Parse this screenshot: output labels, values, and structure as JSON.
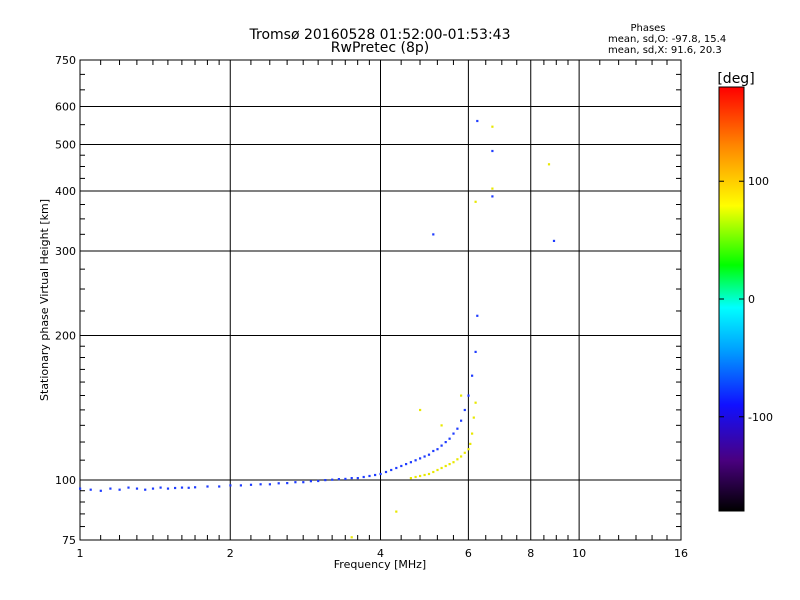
{
  "chart_data": {
    "type": "scatter",
    "title": "Tromsø 20160528 01:52:00-01:53:43",
    "subtitle": "RwPretec (8p)",
    "phases_box": {
      "title": "Phases",
      "line_o": "mean, sd,O: -97.8, 15.4",
      "line_x": "mean, sd,X:  91.6, 20.3"
    },
    "xlabel": "Frequency [MHz]",
    "ylabel": "Stationary phase Virtual Height [km]",
    "x_scale": "log",
    "y_scale": "log",
    "xlim": [
      1,
      16
    ],
    "ylim": [
      75,
      750
    ],
    "x_ticks": [
      1,
      2,
      4,
      6,
      8,
      10,
      16
    ],
    "x_tick_labels": [
      "1",
      "2",
      "4",
      "6",
      "8",
      "10",
      "16"
    ],
    "y_ticks": [
      75,
      100,
      200,
      300,
      400,
      500,
      600,
      750
    ],
    "y_tick_labels": [
      "75",
      "100",
      "200",
      "300",
      "400",
      "500",
      "600",
      "750"
    ],
    "grid": true,
    "colorbar": {
      "label": "[deg]",
      "range": [
        -180,
        180
      ],
      "ticks": [
        100,
        0,
        -100
      ],
      "tick_labels": [
        "100",
        "0",
        "-100"
      ]
    },
    "o_trace": {
      "phase": -100,
      "points": [
        [
          1.0,
          96
        ],
        [
          1.05,
          95.5
        ],
        [
          1.1,
          95
        ],
        [
          1.15,
          96
        ],
        [
          1.2,
          95.5
        ],
        [
          1.25,
          96.5
        ],
        [
          1.3,
          96
        ],
        [
          1.35,
          95.5
        ],
        [
          1.4,
          96
        ],
        [
          1.45,
          96.5
        ],
        [
          1.5,
          96
        ],
        [
          1.55,
          96.3
        ],
        [
          1.6,
          96.5
        ],
        [
          1.65,
          96.4
        ],
        [
          1.7,
          96.6
        ],
        [
          1.8,
          97
        ],
        [
          1.9,
          97
        ],
        [
          2.0,
          97.5
        ],
        [
          2.1,
          97.5
        ],
        [
          2.2,
          97.8
        ],
        [
          2.3,
          98
        ],
        [
          2.4,
          98
        ],
        [
          2.5,
          98.5
        ],
        [
          2.6,
          98.6
        ],
        [
          2.7,
          99
        ],
        [
          2.8,
          99
        ],
        [
          2.9,
          99.5
        ],
        [
          3.0,
          99.6
        ],
        [
          3.1,
          100
        ],
        [
          3.2,
          100.2
        ],
        [
          3.3,
          100.5
        ],
        [
          3.4,
          100.6
        ],
        [
          3.5,
          101
        ],
        [
          3.6,
          101
        ],
        [
          3.7,
          101.5
        ],
        [
          3.8,
          102
        ],
        [
          3.9,
          102.5
        ],
        [
          4.0,
          103
        ],
        [
          4.1,
          104
        ],
        [
          4.2,
          105
        ],
        [
          4.3,
          106
        ],
        [
          4.4,
          107
        ],
        [
          4.5,
          108
        ],
        [
          4.6,
          109
        ],
        [
          4.7,
          110
        ],
        [
          4.8,
          111
        ],
        [
          4.9,
          112
        ],
        [
          5.0,
          113
        ],
        [
          5.1,
          115
        ],
        [
          5.2,
          116
        ],
        [
          5.3,
          118
        ],
        [
          5.4,
          120
        ],
        [
          5.5,
          122
        ],
        [
          5.6,
          125
        ],
        [
          5.7,
          128
        ],
        [
          5.8,
          133
        ],
        [
          5.9,
          140
        ],
        [
          6.0,
          150
        ],
        [
          6.1,
          165
        ],
        [
          6.2,
          185
        ],
        [
          6.25,
          220
        ],
        [
          6.25,
          560
        ],
        [
          6.7,
          485
        ],
        [
          6.7,
          390
        ],
        [
          8.9,
          315
        ],
        [
          5.1,
          325
        ]
      ]
    },
    "x_trace": {
      "phase": 100,
      "points": [
        [
          4.6,
          101
        ],
        [
          4.7,
          101.5
        ],
        [
          4.8,
          102
        ],
        [
          4.9,
          102.5
        ],
        [
          5.0,
          103
        ],
        [
          5.1,
          104
        ],
        [
          5.2,
          105
        ],
        [
          5.3,
          106
        ],
        [
          5.4,
          107
        ],
        [
          5.5,
          108
        ],
        [
          5.6,
          109
        ],
        [
          5.7,
          110.5
        ],
        [
          5.8,
          112
        ],
        [
          5.9,
          114
        ],
        [
          6.0,
          116
        ],
        [
          6.05,
          119
        ],
        [
          6.1,
          125
        ],
        [
          6.15,
          135
        ],
        [
          6.2,
          145
        ],
        [
          5.8,
          150
        ],
        [
          5.3,
          130
        ],
        [
          4.8,
          140
        ],
        [
          6.7,
          545
        ],
        [
          6.7,
          405
        ],
        [
          6.2,
          380
        ],
        [
          8.7,
          455
        ],
        [
          4.3,
          86
        ],
        [
          3.5,
          76
        ]
      ]
    },
    "annotations": []
  }
}
